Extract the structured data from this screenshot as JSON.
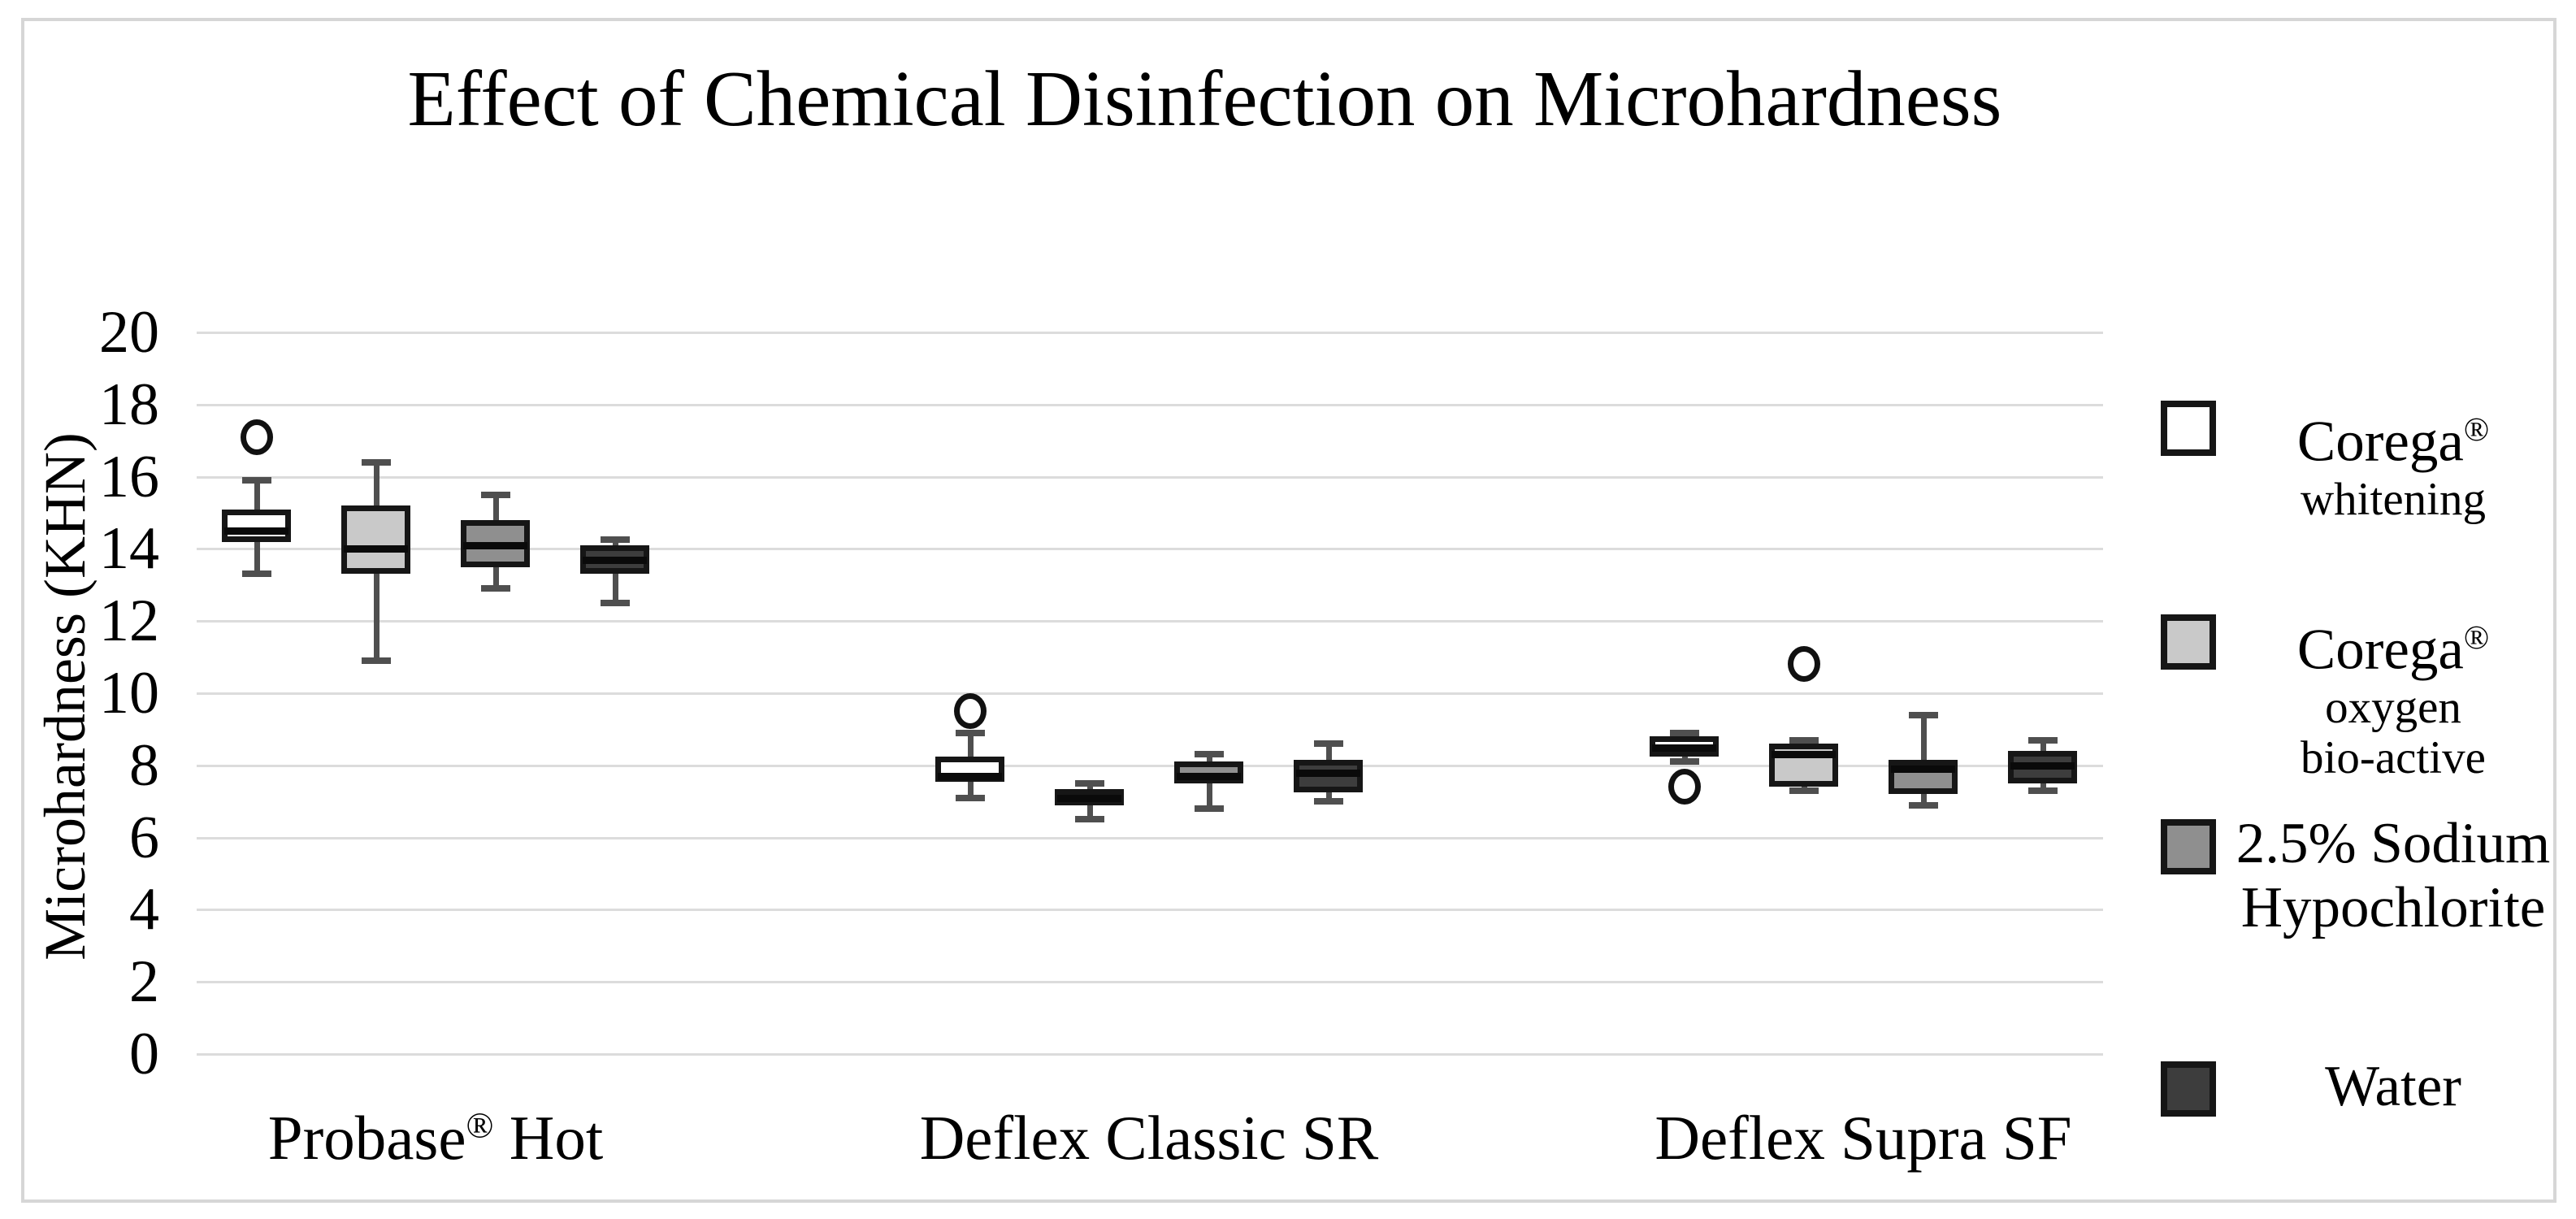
{
  "chart_data": {
    "type": "boxplot",
    "title": "Effect of Chemical Disinfection on Microhardness",
    "ylabel": "Microhardness (KHN)",
    "ylim": [
      0,
      20
    ],
    "ytick_step": 2,
    "ytick_labels": [
      "0",
      "2",
      "4",
      "6",
      "8",
      "10",
      "12",
      "14",
      "16",
      "18",
      "20"
    ],
    "grid": "horizontal",
    "legend_position": "right",
    "x_labels": [
      {
        "pre": "Probase",
        "sup": "®",
        "post": " Hot"
      },
      {
        "pre": "Deflex Classic SR",
        "sup": "",
        "post": ""
      },
      {
        "pre": "Deflex Supra SF",
        "sup": "",
        "post": ""
      }
    ],
    "series": [
      {
        "name": "Corega® whitening",
        "fill": "#ffffff",
        "boxes": [
          {
            "low": 13.3,
            "q1": 14.2,
            "median": 14.5,
            "q3": 15.1,
            "high": 15.9,
            "outliers": [
              17.1
            ]
          },
          {
            "low": 7.1,
            "q1": 7.55,
            "median": 7.7,
            "q3": 8.25,
            "high": 8.9,
            "outliers": [
              9.5
            ]
          },
          {
            "low": 8.1,
            "q1": 8.25,
            "median": 8.5,
            "q3": 8.8,
            "high": 8.9,
            "outliers": [
              7.4
            ]
          }
        ]
      },
      {
        "name": "Corega® oxygen bio-active",
        "fill": "#c9c9c9",
        "boxes": [
          {
            "low": 10.9,
            "q1": 13.3,
            "median": 14.0,
            "q3": 15.2,
            "high": 16.4,
            "outliers": []
          },
          {
            "low": 6.5,
            "q1": 6.9,
            "median": 7.1,
            "q3": 7.35,
            "high": 7.5,
            "outliers": []
          },
          {
            "low": 7.3,
            "q1": 7.4,
            "median": 8.3,
            "q3": 8.6,
            "high": 8.7,
            "outliers": [
              10.8
            ]
          }
        ]
      },
      {
        "name": "2.5% Sodium Hypochlorite",
        "fill": "#8f8f8f",
        "boxes": [
          {
            "low": 12.9,
            "q1": 13.5,
            "median": 14.1,
            "q3": 14.8,
            "high": 15.5,
            "outliers": []
          },
          {
            "low": 6.8,
            "q1": 7.5,
            "median": 7.7,
            "q3": 8.1,
            "high": 8.3,
            "outliers": []
          },
          {
            "low": 6.9,
            "q1": 7.2,
            "median": 7.9,
            "q3": 8.15,
            "high": 9.4,
            "outliers": []
          }
        ]
      },
      {
        "name": "Water",
        "fill": "#3d3d3d",
        "boxes": [
          {
            "low": 12.5,
            "q1": 13.3,
            "median": 13.7,
            "q3": 14.1,
            "high": 14.25,
            "outliers": []
          },
          {
            "low": 7.0,
            "q1": 7.25,
            "median": 7.8,
            "q3": 8.15,
            "high": 8.6,
            "outliers": []
          },
          {
            "low": 7.3,
            "q1": 7.5,
            "median": 8.0,
            "q3": 8.4,
            "high": 8.7,
            "outliers": []
          }
        ]
      }
    ]
  },
  "legend": {
    "entries": [
      {
        "label": "Corega",
        "label_sup": "®",
        "sub_lines": [
          "whitening"
        ],
        "sub_large": false,
        "swatch_color": "#ffffff"
      },
      {
        "label": "Corega",
        "label_sup": "®",
        "sub_lines": [
          "oxygen",
          "bio-active"
        ],
        "sub_large": false,
        "swatch_color": "#c9c9c9"
      },
      {
        "label": "2.5% Sodium",
        "label_sup": "",
        "sub_lines": [
          "Hypochlorite"
        ],
        "sub_large": true,
        "swatch_color": "#8f8f8f"
      },
      {
        "label": "Water",
        "label_sup": "",
        "sub_lines": [],
        "sub_large": false,
        "swatch_color": "#3d3d3d"
      }
    ]
  },
  "colors": {
    "gridline": "#dcdcdc",
    "frame_border": "#d6d6d6",
    "whisker": "#4f4f4f",
    "box_border": "#161616",
    "median": "#0a0a0a"
  }
}
